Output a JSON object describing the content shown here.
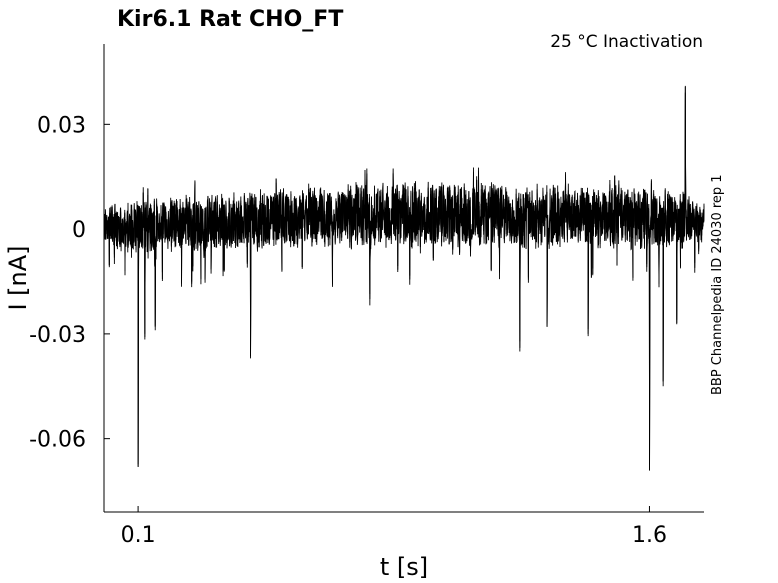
{
  "chart_data": {
    "type": "line",
    "title": "Kir6.1  Rat  CHO_FT",
    "subtitle": "25 °C  Inactivation",
    "side_label": "BBP Channelpedia ID 24030 rep 1",
    "xlabel": "t [s]",
    "ylabel": "I [nA]",
    "xlim": [
      0.0,
      1.76
    ],
    "ylim": [
      -0.081,
      0.053
    ],
    "xticks": [
      0.1,
      1.6
    ],
    "xtick_labels": [
      "0.1",
      "1.6"
    ],
    "yticks": [
      -0.06,
      -0.03,
      0,
      0.03
    ],
    "ytick_labels": [
      "-0.06",
      "-0.03",
      "0",
      "0.03"
    ],
    "grid": false,
    "series_style": {
      "color": "#000000"
    },
    "trace": {
      "t_start": 0.0,
      "t_end": 1.76,
      "noise_band": [
        [
          0.0,
          -0.003,
          0.005
        ],
        [
          0.05,
          -0.005,
          0.006
        ],
        [
          0.2,
          -0.005,
          0.008
        ],
        [
          0.5,
          -0.004,
          0.01
        ],
        [
          0.8,
          -0.004,
          0.012
        ],
        [
          1.1,
          -0.004,
          0.012
        ],
        [
          1.4,
          -0.004,
          0.011
        ],
        [
          1.7,
          -0.004,
          0.009
        ],
        [
          1.76,
          -0.002,
          0.006
        ]
      ],
      "spikes": [
        {
          "t": 0.1,
          "value": -0.068
        },
        {
          "t": 0.12,
          "value": -0.03
        },
        {
          "t": 0.15,
          "value": -0.028
        },
        {
          "t": 0.43,
          "value": -0.037
        },
        {
          "t": 0.78,
          "value": -0.02
        },
        {
          "t": 1.22,
          "value": -0.034
        },
        {
          "t": 1.3,
          "value": -0.028
        },
        {
          "t": 1.42,
          "value": -0.03
        },
        {
          "t": 1.6,
          "value": -0.069
        },
        {
          "t": 1.64,
          "value": -0.045
        },
        {
          "t": 1.68,
          "value": -0.026
        },
        {
          "t": 1.705,
          "value": 0.041
        }
      ]
    }
  }
}
